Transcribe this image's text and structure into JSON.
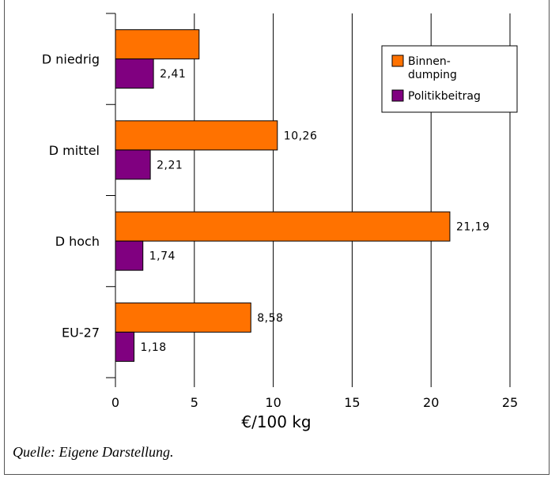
{
  "chart_data": {
    "type": "bar",
    "orientation": "horizontal",
    "categories": [
      "D niedrig",
      "D mittel",
      "D hoch",
      "EU-27"
    ],
    "series": [
      {
        "name": "Binnen-\ndumping",
        "color": "#ff7200",
        "values": [
          5.3,
          10.26,
          21.19,
          8.58
        ],
        "labels": [
          "",
          "10,26",
          "21,19",
          "8,58"
        ]
      },
      {
        "name": "Politikbeitrag",
        "color": "#800080",
        "values": [
          2.41,
          2.21,
          1.74,
          1.18
        ],
        "labels": [
          "2,41",
          "2,21",
          "1,74",
          "1,18"
        ]
      }
    ],
    "xlabel": "€/100 kg",
    "xlim": [
      0,
      25
    ],
    "xticks": [
      0,
      5,
      10,
      15,
      20,
      25
    ],
    "grid": "vertical",
    "legend": "top-right"
  },
  "caption": "Quelle: Eigene Darstellung."
}
